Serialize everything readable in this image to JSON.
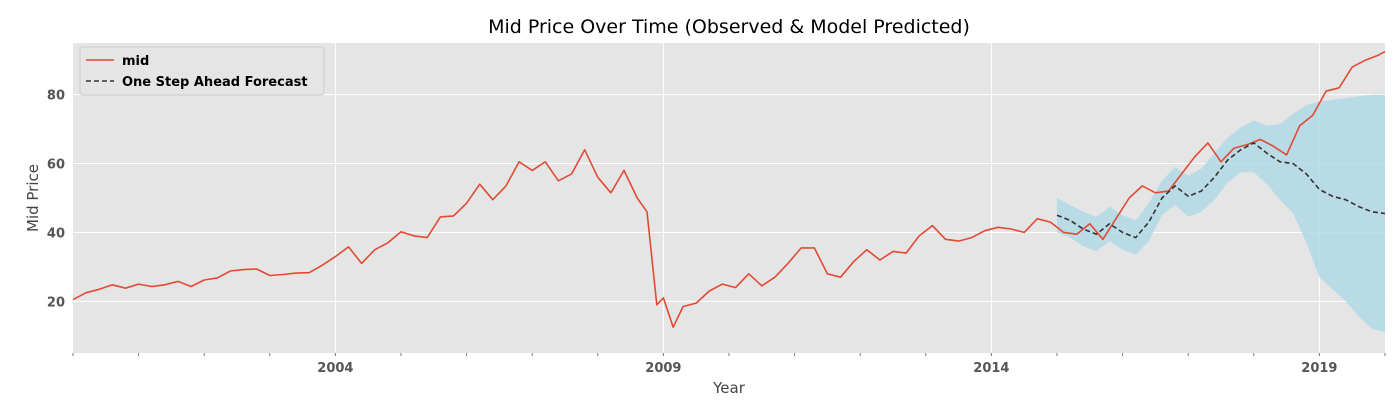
{
  "chart_data": {
    "type": "line",
    "title": "Mid Price Over Time (Observed & Model Predicted)",
    "xlabel": "Year",
    "ylabel": "Mid Price",
    "x_ticks": [
      "2004",
      "2009",
      "2014",
      "2019"
    ],
    "y_ticks": [
      20,
      40,
      60,
      80
    ],
    "xlim": [
      2000.0,
      2020.0
    ],
    "ylim": [
      5,
      95
    ],
    "grid": true,
    "legend_position": "top-left",
    "colors": {
      "background": "#e5e5e5",
      "grid": "#ffffff",
      "observed": "#e24a33",
      "forecast": "#333333",
      "confidence_band": "#add8e6"
    },
    "series": [
      {
        "name": "mid",
        "style": "solid",
        "x": [
          2000.0,
          2000.2,
          2000.4,
          2000.6,
          2000.8,
          2001.0,
          2001.2,
          2001.4,
          2001.6,
          2001.8,
          2002.0,
          2002.2,
          2002.4,
          2002.6,
          2002.8,
          2003.0,
          2003.2,
          2003.4,
          2003.6,
          2003.8,
          2004.0,
          2004.2,
          2004.4,
          2004.6,
          2004.8,
          2005.0,
          2005.2,
          2005.4,
          2005.6,
          2005.8,
          2006.0,
          2006.2,
          2006.4,
          2006.6,
          2006.8,
          2007.0,
          2007.2,
          2007.4,
          2007.6,
          2007.8,
          2008.0,
          2008.2,
          2008.4,
          2008.6,
          2008.75,
          2008.9,
          2009.0,
          2009.15,
          2009.3,
          2009.5,
          2009.7,
          2009.9,
          2010.1,
          2010.3,
          2010.5,
          2010.7,
          2010.9,
          2011.1,
          2011.3,
          2011.5,
          2011.7,
          2011.9,
          2012.1,
          2012.3,
          2012.5,
          2012.7,
          2012.9,
          2013.1,
          2013.3,
          2013.5,
          2013.7,
          2013.9,
          2014.1,
          2014.3,
          2014.5,
          2014.7,
          2014.9,
          2015.1,
          2015.3,
          2015.5,
          2015.7,
          2015.9,
          2016.1,
          2016.3,
          2016.5,
          2016.7,
          2016.9,
          2017.1,
          2017.3,
          2017.5,
          2017.7,
          2017.9,
          2018.1,
          2018.3,
          2018.5,
          2018.7,
          2018.9,
          2019.1,
          2019.3,
          2019.5,
          2019.7,
          2019.9,
          2020.0
        ],
        "values": [
          20.5,
          22.5,
          23.5,
          24.8,
          23.8,
          25.0,
          24.3,
          24.8,
          25.8,
          24.3,
          26.2,
          26.8,
          28.8,
          29.2,
          29.4,
          27.5,
          27.8,
          28.2,
          28.3,
          30.5,
          33.0,
          35.8,
          31.0,
          35.0,
          37.0,
          40.2,
          39.0,
          38.5,
          44.5,
          44.8,
          48.5,
          54.0,
          49.5,
          53.5,
          60.5,
          58.0,
          60.5,
          55.0,
          57.0,
          64.0,
          56.0,
          51.5,
          58.0,
          50.0,
          46.0,
          19.0,
          21.0,
          12.5,
          18.5,
          19.5,
          23.0,
          25.0,
          24.0,
          28.0,
          24.5,
          27.0,
          31.0,
          35.5,
          35.5,
          28.0,
          27.0,
          31.5,
          35.0,
          32.0,
          34.5,
          34.0,
          39.0,
          42.0,
          38.0,
          37.5,
          38.5,
          40.5,
          41.5,
          41.0,
          40.0,
          44.0,
          43.0,
          40.0,
          39.5,
          42.5,
          38.0,
          44.0,
          50.0,
          53.5,
          51.5,
          52.0,
          57.0,
          62.0,
          66.0,
          60.5,
          64.5,
          65.5,
          67.0,
          65.0,
          62.5,
          71.0,
          74.0,
          81.0,
          82.0,
          88.0,
          90.0,
          91.5,
          92.5
        ]
      },
      {
        "name": "One Step Ahead Forecast",
        "style": "dashed",
        "x": [
          2015.0,
          2015.2,
          2015.4,
          2015.6,
          2015.8,
          2016.0,
          2016.2,
          2016.4,
          2016.6,
          2016.8,
          2017.0,
          2017.2,
          2017.4,
          2017.6,
          2017.8,
          2018.0,
          2018.2,
          2018.4,
          2018.6,
          2018.8,
          2019.0,
          2019.2,
          2019.4,
          2019.6,
          2019.8,
          2020.0
        ],
        "values": [
          45.0,
          43.5,
          41.0,
          39.5,
          42.5,
          40.0,
          38.5,
          43.0,
          50.0,
          53.5,
          50.5,
          52.0,
          56.0,
          61.0,
          64.0,
          66.0,
          63.0,
          60.5,
          60.0,
          57.0,
          52.5,
          50.5,
          49.5,
          47.5,
          46.0,
          45.5
        ]
      }
    ],
    "confidence_band": {
      "x": [
        2015.0,
        2015.2,
        2015.4,
        2015.6,
        2015.8,
        2016.0,
        2016.2,
        2016.4,
        2016.6,
        2016.8,
        2017.0,
        2017.2,
        2017.4,
        2017.6,
        2017.8,
        2018.0,
        2018.2,
        2018.4,
        2018.6,
        2018.8,
        2019.0,
        2019.2,
        2019.4,
        2019.6,
        2019.8,
        2020.0
      ],
      "upper": [
        50.0,
        48.0,
        46.0,
        44.5,
        47.5,
        45.0,
        43.5,
        48.5,
        55.0,
        59.0,
        56.5,
        58.5,
        63.0,
        67.5,
        70.5,
        72.5,
        71.0,
        71.5,
        74.5,
        77.0,
        78.0,
        78.5,
        79.0,
        79.5,
        80.0,
        80.0
      ],
      "lower": [
        40.0,
        38.5,
        36.0,
        34.5,
        37.5,
        35.0,
        33.5,
        37.5,
        45.0,
        48.0,
        44.5,
        46.0,
        49.5,
        54.5,
        57.5,
        57.5,
        54.0,
        49.5,
        45.5,
        37.0,
        27.0,
        23.5,
        20.0,
        15.5,
        12.0,
        11.0
      ]
    }
  }
}
